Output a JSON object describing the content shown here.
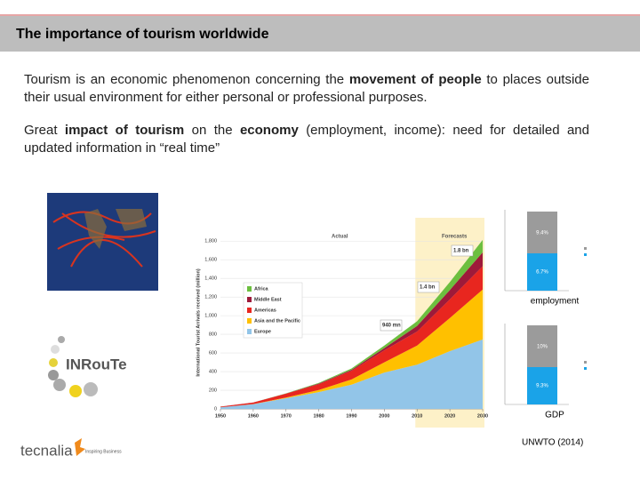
{
  "header": {
    "title": "The importance of tourism worldwide"
  },
  "body": {
    "paragraphs": [
      [
        "Tourism is an economic phenomenon concerning the ",
        "movement of people",
        " to places outside their usual environment for either personal or professional purposes."
      ],
      [
        "Great ",
        "impact of tourism",
        " on the ",
        "economy",
        " (employment, income): need for detailed and updated information in “real time”"
      ]
    ]
  },
  "chart_data": {
    "type": "stacked_area",
    "y_label": "International Tourist Arrivals received (million)",
    "annotations": {
      "actual": "Actual",
      "forecasts": "Forecasts",
      "bn_2030": "1.8 bn",
      "bn_2020": "1.4 bn",
      "mn_2010": "940 mn"
    },
    "x": [
      1950,
      1960,
      1970,
      1980,
      1990,
      2000,
      2010,
      2020,
      2030
    ],
    "xlim": [
      1950,
      2030
    ],
    "xticks": [
      1950,
      1960,
      1970,
      1980,
      1990,
      2000,
      2010,
      2020,
      2030
    ],
    "ylim": [
      0,
      1850
    ],
    "yticks": [
      0,
      200,
      400,
      600,
      800,
      {
        "value": 1000,
        "label": "1,000"
      },
      {
        "value": 1200,
        "label": "1,200"
      },
      {
        "value": 1400,
        "label": "1,400"
      },
      {
        "value": 1600,
        "label": "1,600"
      },
      {
        "value": 1800,
        "label": "1,800"
      }
    ],
    "forecast_from": 2010,
    "series": [
      {
        "name": "Europe",
        "color": "#92c5e8",
        "values": [
          17,
          50,
          115,
          180,
          260,
          390,
          475,
          620,
          745
        ]
      },
      {
        "name": "Asia and the Pacific",
        "color": "#ffc000",
        "values": [
          0.2,
          1,
          6,
          23,
          56,
          110,
          205,
          355,
          535
        ]
      },
      {
        "name": "Americas",
        "color": "#e8261f",
        "values": [
          7,
          17,
          42,
          62,
          93,
          128,
          150,
          200,
          250
        ]
      },
      {
        "name": "Middle East",
        "color": "#9e1a3a",
        "values": [
          0.2,
          0.6,
          2,
          7,
          10,
          24,
          60,
          101,
          149
        ]
      },
      {
        "name": "Africa",
        "color": "#6cbf3f",
        "values": [
          0.5,
          0.8,
          2,
          7,
          15,
          28,
          50,
          85,
          134
        ]
      }
    ]
  },
  "side_charts": [
    {
      "caption": "employment",
      "top": "9.4%",
      "bottom": "6.7%"
    },
    {
      "caption": "GDP",
      "top": "10%",
      "bottom": "9.3%"
    }
  ],
  "logos": {
    "inroute": "INRouTe",
    "tecnalia": "tecnalia",
    "tagline": "Inspiring Business"
  },
  "source": "UNWTO (2014)"
}
